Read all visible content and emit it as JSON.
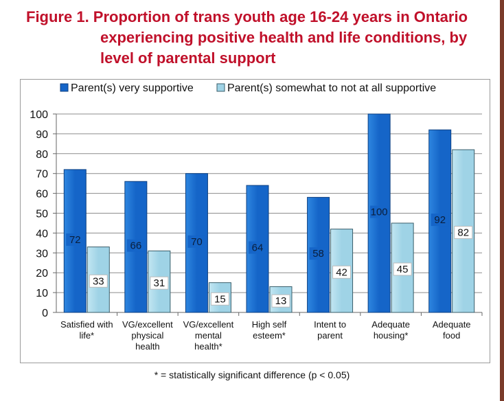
{
  "title": {
    "line1": "Figure 1.  Proportion of trans youth age 16-24 years in Ontario",
    "line2": "experiencing positive health and life conditions, by",
    "line3": "level of parental support"
  },
  "footnote": "* = statistically significant difference (p < 0.05)",
  "colors": {
    "title": "#c0102a",
    "series1": "#1565c8",
    "series2": "#9fd3e6"
  },
  "chart_data": {
    "type": "bar",
    "categories": [
      [
        "Satisfied with",
        "life*"
      ],
      [
        "VG/excellent",
        "physical",
        "health"
      ],
      [
        "VG/excellent",
        "mental",
        "health*"
      ],
      [
        "High self",
        "esteem*"
      ],
      [
        "Intent to",
        "parent"
      ],
      [
        "Adequate",
        "housing*"
      ],
      [
        "Adequate",
        "food"
      ]
    ],
    "series": [
      {
        "name": "Parent(s) very supportive",
        "values": [
          72,
          66,
          70,
          64,
          58,
          100,
          92
        ]
      },
      {
        "name": "Parent(s) somewhat to not at all supportive",
        "values": [
          33,
          31,
          15,
          13,
          42,
          45,
          82
        ]
      }
    ],
    "ylim": [
      0,
      100
    ],
    "yticks": [
      0,
      10,
      20,
      30,
      40,
      50,
      60,
      70,
      80,
      90,
      100
    ],
    "grid": true,
    "legend": "top"
  }
}
